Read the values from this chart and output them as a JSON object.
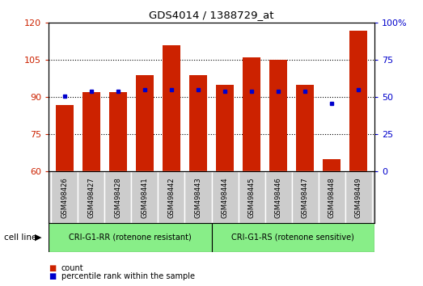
{
  "title": "GDS4014 / 1388729_at",
  "categories": [
    "GSM498426",
    "GSM498427",
    "GSM498428",
    "GSM498441",
    "GSM498442",
    "GSM498443",
    "GSM498444",
    "GSM498445",
    "GSM498446",
    "GSM498447",
    "GSM498448",
    "GSM498449"
  ],
  "counts": [
    87,
    92,
    92,
    99,
    111,
    99,
    95,
    106,
    105,
    95,
    65,
    117
  ],
  "percentile_ranks": [
    51,
    54,
    54,
    55,
    55,
    55,
    54,
    54,
    54,
    54,
    46,
    55
  ],
  "group1_label": "CRI-G1-RR (rotenone resistant)",
  "group2_label": "CRI-G1-RS (rotenone sensitive)",
  "group1_count": 6,
  "group2_count": 6,
  "ylim_left": [
    60,
    120
  ],
  "ylim_right": [
    0,
    100
  ],
  "yticks_left": [
    60,
    75,
    90,
    105,
    120
  ],
  "yticks_right": [
    0,
    25,
    50,
    75,
    100
  ],
  "bar_color": "#cc2200",
  "dot_color": "#0000cc",
  "bg_color": "#ffffff",
  "tick_area_color": "#cccccc",
  "group_bg_color": "#88ee88",
  "cell_line_label": "cell line"
}
